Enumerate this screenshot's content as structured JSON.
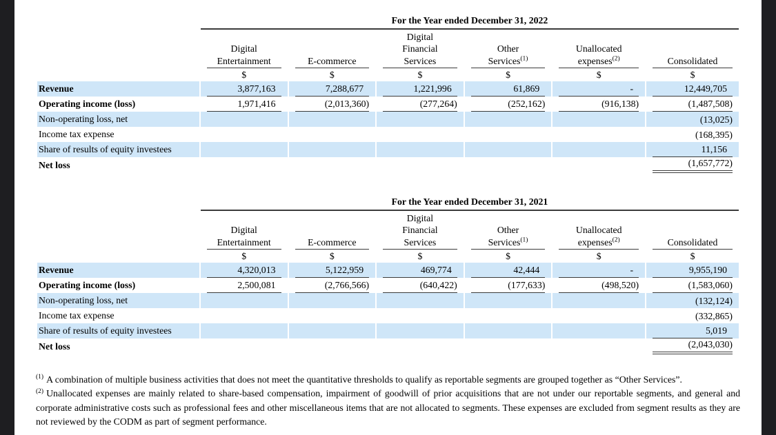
{
  "colors": {
    "row_stripe": "#cfe6f8",
    "stripe_seam": "#eaf4fc",
    "letterbox": "#1e1e21",
    "rule": "#3a3a3a",
    "page_background": "#ffffff"
  },
  "currency": "$",
  "tables": [
    {
      "period": "For the Year ended December 31, 2022",
      "columns": [
        {
          "title": "Digital\nEntertainment",
          "sup": ""
        },
        {
          "title": "E-commerce",
          "sup": ""
        },
        {
          "title": "Digital\nFinancial\nServices",
          "sup": ""
        },
        {
          "title": "Other\nServices",
          "sup": "(1)"
        },
        {
          "title": "Unallocated\nexpenses",
          "sup": "(2)"
        },
        {
          "title": "Consolidated",
          "sup": ""
        }
      ],
      "rows": [
        {
          "label": "Revenue",
          "bold": true,
          "stripe": true,
          "rule": "single",
          "values": [
            "3,877,163",
            "7,288,677",
            "1,221,996",
            "61,869",
            "-",
            "12,449,705"
          ]
        },
        {
          "label": "Operating income (loss)",
          "bold": true,
          "stripe": false,
          "rule": "single",
          "values": [
            "1,971,416",
            "(2,013,360)",
            "(277,264)",
            "(252,162)",
            "(916,138)",
            "(1,487,508)"
          ]
        },
        {
          "label": "Non-operating loss, net",
          "bold": false,
          "stripe": true,
          "rule": "none",
          "values": [
            "",
            "",
            "",
            "",
            "",
            "(13,025)"
          ]
        },
        {
          "label": "Income tax expense",
          "bold": false,
          "stripe": false,
          "rule": "none",
          "values": [
            "",
            "",
            "",
            "",
            "",
            "(168,395)"
          ]
        },
        {
          "label": "Share of results of equity investees",
          "bold": false,
          "stripe": true,
          "rule": "last1",
          "values": [
            "",
            "",
            "",
            "",
            "",
            "11,156"
          ]
        },
        {
          "label": "Net loss",
          "bold": true,
          "stripe": false,
          "rule": "last2",
          "values": [
            "",
            "",
            "",
            "",
            "",
            "(1,657,772)"
          ]
        }
      ]
    },
    {
      "period": "For the Year ended December 31, 2021",
      "columns": [
        {
          "title": "Digital\nEntertainment",
          "sup": ""
        },
        {
          "title": "E-commerce",
          "sup": ""
        },
        {
          "title": "Digital\nFinancial\nServices",
          "sup": ""
        },
        {
          "title": "Other\nServices",
          "sup": "(1)"
        },
        {
          "title": "Unallocated\nexpenses",
          "sup": "(2)"
        },
        {
          "title": "Consolidated",
          "sup": ""
        }
      ],
      "rows": [
        {
          "label": "Revenue",
          "bold": true,
          "stripe": true,
          "rule": "single",
          "values": [
            "4,320,013",
            "5,122,959",
            "469,774",
            "42,444",
            "-",
            "9,955,190"
          ]
        },
        {
          "label": "Operating income (loss)",
          "bold": true,
          "stripe": false,
          "rule": "single",
          "values": [
            "2,500,081",
            "(2,766,566)",
            "(640,422)",
            "(177,633)",
            "(498,520)",
            "(1,583,060)"
          ]
        },
        {
          "label": "Non-operating loss, net",
          "bold": false,
          "stripe": true,
          "rule": "none",
          "values": [
            "",
            "",
            "",
            "",
            "",
            "(132,124)"
          ]
        },
        {
          "label": "Income tax expense",
          "bold": false,
          "stripe": false,
          "rule": "none",
          "values": [
            "",
            "",
            "",
            "",
            "",
            "(332,865)"
          ]
        },
        {
          "label": "Share of results of equity investees",
          "bold": false,
          "stripe": true,
          "rule": "last1",
          "values": [
            "",
            "",
            "",
            "",
            "",
            "5,019"
          ]
        },
        {
          "label": "Net loss",
          "bold": true,
          "stripe": false,
          "rule": "last2",
          "values": [
            "",
            "",
            "",
            "",
            "",
            "(2,043,030)"
          ]
        }
      ]
    }
  ],
  "footnotes": [
    {
      "marker": "(1)",
      "text": "A combination of multiple business activities that does not meet the quantitative thresholds to qualify as reportable segments are grouped together as “Other Services”."
    },
    {
      "marker": "(2)",
      "text": "Unallocated expenses are mainly related to share-based compensation, impairment of goodwill of prior acquisitions that are not under our reportable segments, and general and corporate administrative costs such as professional fees and other miscellaneous items that are not allocated to segments. These expenses are excluded from segment results as they are not reviewed by the CODM as part of segment performance."
    }
  ]
}
